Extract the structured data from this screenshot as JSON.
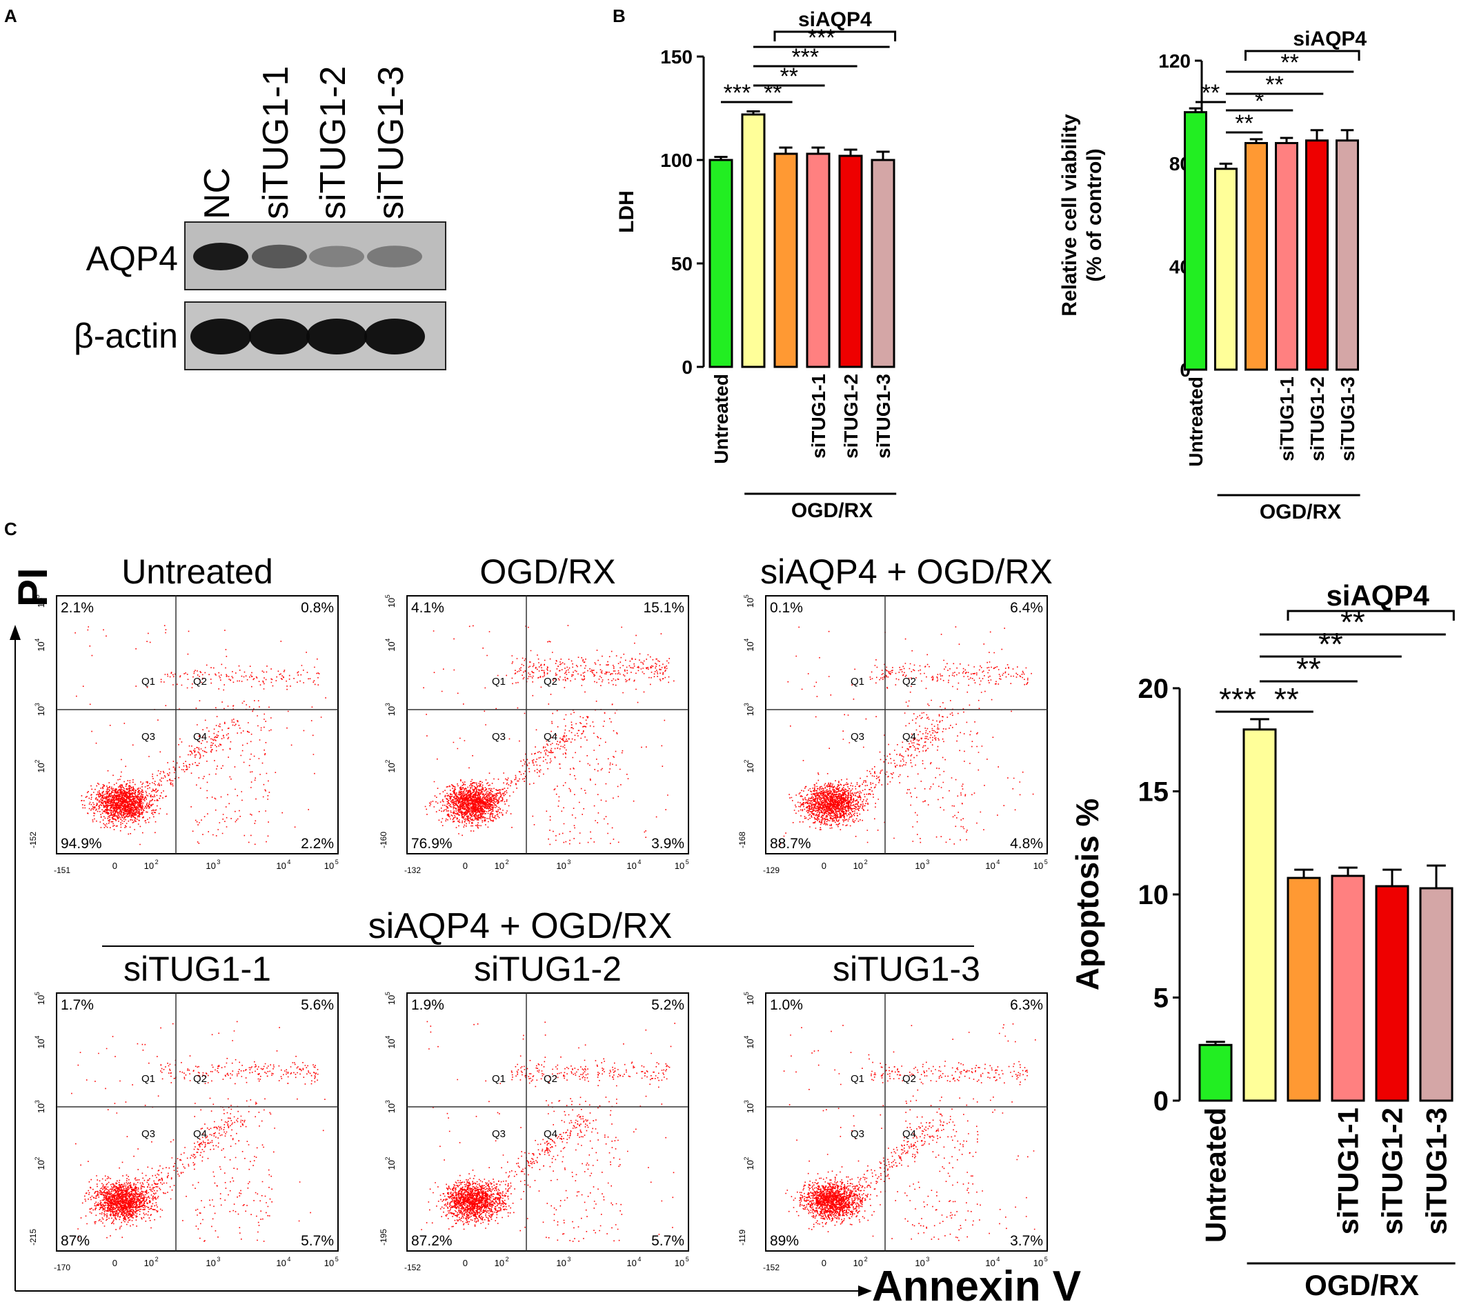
{
  "panels": {
    "a_label": "A",
    "b_label": "B",
    "c_label": "C"
  },
  "western": {
    "lanes": [
      "NC",
      "siTUG1-1",
      "siTUG1-2",
      "siTUG1-3"
    ],
    "rows": [
      "AQP4",
      "β-actin"
    ],
    "aqp4_intensity": [
      1.0,
      0.55,
      0.25,
      0.3
    ],
    "actin_intensity": [
      1.0,
      1.0,
      1.0,
      1.0
    ]
  },
  "colors": {
    "untreated": "#22ee22",
    "ogd": "#ffff99",
    "siaqp4": "#ff9933",
    "situg1_1": "#ff8080",
    "situg1_2": "#ee0000",
    "situg1_3": "#d4a6a6",
    "dots": "#ff0000"
  },
  "group": {
    "siaqp4": "siAQP4",
    "ogd": "OGD/RX"
  },
  "chart_data": [
    {
      "type": "bar",
      "ylabel": "LDH",
      "ylim": [
        0,
        150
      ],
      "yticks": [
        "0",
        "50",
        "100",
        "150"
      ],
      "categories": [
        "Untreated",
        "",
        "",
        "siTUG1-1",
        "siTUG1-2",
        "siTUG1-3"
      ],
      "values": [
        100,
        122,
        103,
        103,
        102,
        100
      ],
      "errors": [
        1.5,
        1.5,
        3,
        3,
        3,
        4
      ],
      "sig": [
        "***",
        "**",
        "**",
        "***",
        "***"
      ],
      "bracket_label": "siAQP4",
      "group_label": "OGD/RX"
    },
    {
      "type": "bar",
      "ylabel": "Relative cell viability",
      "ylabel2": "(% of control)",
      "ylim": [
        0,
        120
      ],
      "yticks": [
        "0",
        "40",
        "80",
        "120"
      ],
      "categories": [
        "Untreated",
        "",
        "",
        "siTUG1-1",
        "siTUG1-2",
        "siTUG1-3"
      ],
      "values": [
        100,
        78,
        88,
        88,
        89,
        89
      ],
      "errors": [
        1.5,
        2,
        1.5,
        2,
        4,
        4
      ],
      "sig": [
        "**",
        "**",
        "*",
        "**",
        "**"
      ],
      "bracket_label": "siAQP4",
      "group_label": "OGD/RX"
    },
    {
      "type": "bar",
      "ylabel": "Apoptosis %",
      "ylim": [
        0,
        20
      ],
      "yticks": [
        "0",
        "5",
        "10",
        "15",
        "20"
      ],
      "categories": [
        "Untreated",
        "",
        "",
        "siTUG1-1",
        "siTUG1-2",
        "siTUG1-3"
      ],
      "values": [
        2.7,
        18.0,
        10.8,
        10.9,
        10.4,
        10.3
      ],
      "errors": [
        0.15,
        0.5,
        0.4,
        0.4,
        0.8,
        1.1
      ],
      "sig": [
        "***",
        "**",
        "**",
        "**",
        "**"
      ],
      "bracket_label": "siAQP4",
      "group_label": "OGD/RX"
    },
    {
      "type": "scatter",
      "y_axis_label": "PI",
      "x_axis_label": "Annexin V",
      "quadrant_names": [
        "Q1",
        "Q2",
        "Q3",
        "Q4"
      ],
      "x_tick_exponents": [
        "2",
        "3",
        "4",
        "5"
      ],
      "group_header": "siAQP4 + OGD/RX",
      "plots": [
        {
          "title": "Untreated",
          "q": [
            "2.1%",
            "0.8%",
            "94.9%",
            "2.2%"
          ],
          "xmin": "-151",
          "ymin": "-152",
          "late": 0.3
        },
        {
          "title": "OGD/RX",
          "q": [
            "4.1%",
            "15.1%",
            "76.9%",
            "3.9%"
          ],
          "xmin": "-132",
          "ymin": "-160",
          "late": 1.0
        },
        {
          "title": "siAQP4 + OGD/RX",
          "q": [
            "0.1%",
            "6.4%",
            "88.7%",
            "4.8%"
          ],
          "xmin": "-129",
          "ymin": "-168",
          "late": 0.55
        },
        {
          "title": "siTUG1-1",
          "q": [
            "1.7%",
            "5.6%",
            "87%",
            "5.7%"
          ],
          "xmin": "-170",
          "ymin": "-215",
          "late": 0.5
        },
        {
          "title": "siTUG1-2",
          "q": [
            "1.9%",
            "5.2%",
            "87.2%",
            "5.7%"
          ],
          "xmin": "-152",
          "ymin": "-195",
          "late": 0.5
        },
        {
          "title": "siTUG1-3",
          "q": [
            "1.0%",
            "6.3%",
            "89%",
            "3.7%"
          ],
          "xmin": "-152",
          "ymin": "-119",
          "late": 0.45
        }
      ]
    }
  ]
}
